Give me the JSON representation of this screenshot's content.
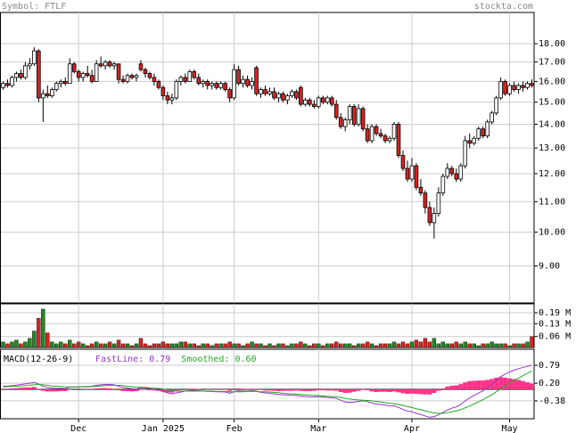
{
  "chart_data": [
    {
      "type": "candlestick",
      "symbol_label": "Symbol: FTLF",
      "source": "stockta.com",
      "categories": [
        null,
        null,
        null,
        null,
        null,
        null,
        null,
        null,
        null,
        null,
        null,
        null,
        null,
        null,
        null,
        null,
        null,
        "Dec",
        null,
        null,
        null,
        null,
        null,
        null,
        null,
        null,
        null,
        null,
        null,
        null,
        null,
        null,
        null,
        null,
        null,
        null,
        "Jan 2025",
        null,
        null,
        null,
        null,
        null,
        null,
        null,
        null,
        null,
        null,
        null,
        null,
        null,
        null,
        null,
        "Feb",
        null,
        null,
        null,
        null,
        null,
        null,
        null,
        null,
        null,
        null,
        null,
        null,
        null,
        null,
        null,
        null,
        null,
        null,
        "Mar",
        null,
        null,
        null,
        null,
        null,
        null,
        null,
        null,
        null,
        null,
        null,
        null,
        null,
        null,
        null,
        null,
        null,
        null,
        null,
        null,
        "Apr",
        null,
        null,
        null,
        null,
        null,
        null,
        null,
        null,
        null,
        null,
        null,
        null,
        null,
        null,
        null,
        null,
        null,
        null,
        null,
        null,
        null,
        "May",
        null,
        null,
        null,
        null,
        null
      ],
      "open": [
        15.7,
        15.9,
        15.8,
        16.2,
        16.4,
        16.2,
        16.8,
        16.9,
        17.6,
        15.2,
        15.4,
        15.3,
        15.6,
        15.9,
        16.0,
        15.9,
        16.9,
        16.5,
        16.2,
        16.4,
        16.3,
        16.0,
        16.9,
        16.8,
        17.0,
        16.8,
        16.9,
        16.1,
        16.0,
        16.3,
        16.2,
        16.9,
        16.6,
        16.4,
        16.2,
        16.0,
        15.7,
        15.3,
        15.1,
        15.2,
        16.0,
        16.2,
        16.0,
        16.5,
        16.2,
        15.9,
        16.0,
        15.8,
        15.9,
        15.7,
        15.9,
        15.6,
        15.2,
        16.6,
        15.9,
        16.1,
        15.8,
        16.7,
        15.4,
        15.6,
        15.4,
        15.5,
        15.2,
        15.4,
        15.1,
        15.3,
        15.5,
        15.7,
        14.9,
        15.1,
        14.9,
        14.8,
        15.2,
        15.0,
        15.2,
        14.9,
        14.3,
        13.9,
        14.2,
        14.8,
        14.0,
        14.7,
        13.8,
        13.3,
        13.9,
        13.6,
        13.5,
        13.3,
        13.4,
        14.0,
        12.7,
        12.2,
        11.8,
        12.3,
        11.5,
        11.3,
        10.8,
        10.3,
        10.6,
        11.3,
        11.9,
        12.2,
        12.0,
        11.8,
        12.3,
        13.3,
        13.2,
        13.4,
        13.8,
        13.5,
        14.1,
        14.5,
        15.2,
        16.0,
        15.4,
        15.8,
        15.6,
        15.8,
        15.7,
        15.9
      ],
      "high": [
        16.0,
        16.1,
        16.3,
        16.5,
        16.6,
        17.0,
        17.2,
        17.8,
        17.7,
        15.6,
        15.8,
        15.7,
        16.0,
        16.1,
        16.2,
        17.2,
        17.0,
        16.6,
        16.5,
        16.8,
        16.6,
        17.1,
        17.3,
        17.1,
        17.1,
        17.0,
        16.9,
        16.3,
        16.4,
        16.4,
        16.4,
        17.1,
        16.7,
        16.5,
        16.4,
        16.1,
        15.8,
        15.5,
        15.4,
        16.1,
        16.3,
        16.4,
        16.6,
        16.6,
        16.4,
        16.1,
        16.1,
        16.0,
        16.0,
        16.0,
        16.0,
        15.7,
        16.9,
        16.8,
        16.3,
        16.3,
        16.2,
        16.8,
        15.7,
        15.8,
        15.7,
        15.7,
        15.5,
        15.5,
        15.4,
        15.6,
        15.6,
        15.8,
        15.2,
        15.2,
        15.1,
        15.3,
        15.3,
        15.3,
        15.3,
        15.1,
        14.5,
        14.3,
        14.9,
        14.9,
        14.9,
        14.8,
        14.0,
        14.0,
        14.0,
        13.8,
        13.6,
        13.5,
        14.1,
        14.1,
        12.9,
        12.5,
        12.6,
        12.4,
        11.8,
        11.4,
        11.0,
        10.8,
        11.5,
        12.0,
        12.4,
        12.3,
        12.2,
        12.4,
        13.5,
        13.6,
        13.5,
        13.9,
        13.9,
        14.2,
        14.6,
        15.3,
        16.2,
        16.1,
        15.9,
        16.0,
        15.9,
        16.0,
        16.0,
        16.1
      ],
      "low": [
        15.6,
        15.7,
        15.7,
        16.0,
        16.1,
        16.1,
        16.6,
        16.8,
        15.0,
        14.1,
        15.2,
        15.2,
        15.5,
        15.7,
        15.8,
        15.9,
        16.4,
        16.0,
        16.0,
        16.2,
        15.9,
        16.0,
        16.7,
        16.6,
        16.7,
        16.6,
        15.9,
        15.9,
        15.9,
        16.1,
        16.0,
        16.5,
        16.2,
        16.1,
        15.8,
        15.6,
        15.1,
        14.9,
        14.9,
        15.1,
        15.8,
        15.9,
        16.0,
        16.1,
        15.8,
        15.7,
        15.6,
        15.6,
        15.6,
        15.6,
        15.5,
        15.0,
        15.1,
        15.8,
        15.7,
        15.7,
        15.6,
        15.3,
        15.2,
        15.3,
        15.3,
        15.1,
        15.0,
        15.0,
        14.9,
        15.2,
        15.1,
        14.8,
        14.8,
        14.8,
        14.7,
        14.7,
        14.9,
        14.9,
        14.8,
        14.2,
        13.8,
        13.7,
        14.0,
        13.9,
        13.9,
        13.7,
        13.2,
        13.2,
        13.5,
        13.4,
        13.2,
        13.2,
        13.3,
        12.6,
        12.1,
        11.7,
        11.7,
        11.4,
        11.2,
        10.6,
        10.2,
        9.8,
        10.5,
        11.2,
        11.8,
        11.9,
        11.7,
        11.7,
        12.2,
        13.0,
        13.1,
        13.3,
        13.4,
        13.4,
        14.0,
        14.4,
        15.1,
        15.3,
        15.3,
        15.5,
        15.4,
        15.5,
        15.6,
        15.7
      ],
      "close": [
        15.9,
        15.8,
        16.2,
        16.4,
        16.2,
        16.8,
        16.9,
        17.6,
        15.2,
        15.4,
        15.3,
        15.6,
        15.9,
        16.0,
        15.9,
        16.9,
        16.5,
        16.2,
        16.4,
        16.3,
        16.0,
        16.9,
        16.8,
        17.0,
        16.8,
        16.9,
        16.1,
        16.0,
        16.3,
        16.2,
        16.3,
        16.6,
        16.4,
        16.2,
        16.0,
        15.7,
        15.3,
        15.1,
        15.2,
        16.0,
        16.2,
        16.0,
        16.5,
        16.2,
        15.9,
        16.0,
        15.8,
        15.9,
        15.7,
        15.9,
        15.6,
        15.2,
        16.6,
        15.9,
        16.1,
        15.8,
        16.0,
        15.4,
        15.6,
        15.4,
        15.5,
        15.2,
        15.4,
        15.1,
        15.3,
        15.5,
        15.2,
        14.9,
        15.1,
        14.9,
        14.8,
        15.2,
        15.0,
        15.2,
        14.9,
        14.3,
        13.9,
        14.2,
        14.8,
        14.0,
        14.7,
        13.8,
        13.3,
        13.9,
        13.6,
        13.5,
        13.3,
        13.4,
        14.0,
        12.7,
        12.2,
        11.8,
        12.3,
        11.5,
        11.3,
        10.8,
        10.3,
        10.6,
        11.3,
        11.9,
        12.2,
        12.0,
        11.8,
        12.3,
        13.3,
        13.2,
        13.4,
        13.8,
        13.5,
        14.1,
        14.5,
        15.2,
        16.0,
        15.4,
        15.8,
        15.6,
        15.8,
        15.7,
        15.9,
        15.8
      ],
      "up_color": "#ffffff",
      "down_color": "#dd2222",
      "log_scale": true,
      "ylim": [
        8.02,
        19.84
      ],
      "grid": true,
      "yticks": [
        {
          "value": 9,
          "label": "9.00"
        },
        {
          "value": 10,
          "label": "10.00"
        },
        {
          "value": 11,
          "label": "11.00"
        },
        {
          "value": 12,
          "label": "12.00"
        },
        {
          "value": 13,
          "label": "13.00"
        },
        {
          "value": 14,
          "label": "14.00"
        },
        {
          "value": 15,
          "label": "15.00"
        },
        {
          "value": 16,
          "label": "16.00"
        },
        {
          "value": 17,
          "label": "17.00"
        },
        {
          "value": 18,
          "label": "18.00"
        }
      ]
    },
    {
      "type": "bar",
      "up_color": "#228822",
      "down_color": "#dd2222",
      "values": [
        0.03,
        0.02,
        0.03,
        0.04,
        0.02,
        0.03,
        0.05,
        0.09,
        0.16,
        0.21,
        0.08,
        0.03,
        0.02,
        0.03,
        0.02,
        0.04,
        0.02,
        0.03,
        0.02,
        0.01,
        0.02,
        0.03,
        0.02,
        0.02,
        0.03,
        0.02,
        0.04,
        0.02,
        0.02,
        0.01,
        0.02,
        0.05,
        0.02,
        0.01,
        0.02,
        0.02,
        0.03,
        0.02,
        0.02,
        0.02,
        0.03,
        0.03,
        0.02,
        0.02,
        0.01,
        0.02,
        0.02,
        0.01,
        0.02,
        0.02,
        0.02,
        0.03,
        0.02,
        0.02,
        0.01,
        0.02,
        0.03,
        0.02,
        0.02,
        0.01,
        0.02,
        0.01,
        0.02,
        0.02,
        0.01,
        0.02,
        0.02,
        0.03,
        0.02,
        0.01,
        0.02,
        0.02,
        0.01,
        0.02,
        0.02,
        0.03,
        0.02,
        0.02,
        0.02,
        0.01,
        0.02,
        0.02,
        0.03,
        0.02,
        0.01,
        0.02,
        0.02,
        0.02,
        0.03,
        0.02,
        0.03,
        0.02,
        0.03,
        0.04,
        0.03,
        0.05,
        0.03,
        0.05,
        0.02,
        0.03,
        0.02,
        0.02,
        0.03,
        0.02,
        0.03,
        0.02,
        0.02,
        0.01,
        0.02,
        0.02,
        0.03,
        0.02,
        0.02,
        0.02,
        0.01,
        0.02,
        0.02,
        0.02,
        0.03,
        0.06
      ],
      "ylim": [
        0,
        0.239
      ],
      "grid": true,
      "yticks": [
        {
          "value": 0.06,
          "label": "0.06 M"
        },
        {
          "value": 0.13,
          "label": "0.13 M"
        },
        {
          "value": 0.19,
          "label": "0.19 M"
        }
      ]
    },
    {
      "type": "macd",
      "title": "MACD(12-26-9)",
      "series": [
        {
          "name": "FastLine:",
          "value_label": "0.79",
          "color": "#9933cc",
          "kind": "line",
          "values": [
            0.1,
            0.11,
            0.12,
            0.14,
            0.16,
            0.18,
            0.2,
            0.23,
            0.17,
            0.1,
            0.06,
            0.04,
            0.03,
            0.03,
            0.02,
            0.07,
            0.08,
            0.08,
            0.09,
            0.09,
            0.1,
            0.13,
            0.15,
            0.16,
            0.16,
            0.15,
            0.1,
            0.06,
            0.04,
            0.02,
            0.01,
            0.05,
            0.04,
            0.02,
            0.0,
            -0.02,
            -0.07,
            -0.12,
            -0.15,
            -0.12,
            -0.09,
            -0.06,
            -0.04,
            -0.04,
            -0.05,
            -0.06,
            -0.07,
            -0.07,
            -0.08,
            -0.08,
            -0.09,
            -0.13,
            -0.08,
            -0.05,
            -0.06,
            -0.06,
            -0.05,
            -0.06,
            -0.1,
            -0.12,
            -0.13,
            -0.15,
            -0.17,
            -0.18,
            -0.19,
            -0.2,
            -0.2,
            -0.22,
            -0.24,
            -0.25,
            -0.25,
            -0.24,
            -0.25,
            -0.27,
            -0.28,
            -0.3,
            -0.36,
            -0.42,
            -0.43,
            -0.42,
            -0.4,
            -0.38,
            -0.4,
            -0.45,
            -0.49,
            -0.5,
            -0.52,
            -0.55,
            -0.54,
            -0.6,
            -0.66,
            -0.72,
            -0.74,
            -0.79,
            -0.83,
            -0.88,
            -0.92,
            -0.9,
            -0.84,
            -0.76,
            -0.68,
            -0.62,
            -0.58,
            -0.5,
            -0.38,
            -0.28,
            -0.2,
            -0.12,
            -0.05,
            0.05,
            0.16,
            0.3,
            0.42,
            0.5,
            0.57,
            0.63,
            0.68,
            0.72,
            0.76,
            0.79
          ]
        },
        {
          "name": "Smoothed:",
          "value_label": "0.60",
          "color": "#22aa22",
          "kind": "line",
          "values": [
            0.08,
            0.09,
            0.09,
            0.1,
            0.11,
            0.12,
            0.14,
            0.15,
            0.16,
            0.15,
            0.13,
            0.11,
            0.1,
            0.09,
            0.08,
            0.08,
            0.08,
            0.08,
            0.08,
            0.08,
            0.09,
            0.1,
            0.11,
            0.12,
            0.13,
            0.13,
            0.13,
            0.12,
            0.1,
            0.09,
            0.07,
            0.07,
            0.06,
            0.05,
            0.04,
            0.03,
            0.01,
            -0.02,
            -0.04,
            -0.06,
            -0.06,
            -0.06,
            -0.06,
            -0.06,
            -0.06,
            -0.06,
            -0.06,
            -0.06,
            -0.07,
            -0.07,
            -0.07,
            -0.08,
            -0.08,
            -0.08,
            -0.08,
            -0.07,
            -0.07,
            -0.07,
            -0.08,
            -0.08,
            -0.09,
            -0.1,
            -0.11,
            -0.13,
            -0.14,
            -0.15,
            -0.16,
            -0.17,
            -0.18,
            -0.19,
            -0.2,
            -0.21,
            -0.22,
            -0.23,
            -0.24,
            -0.25,
            -0.27,
            -0.3,
            -0.32,
            -0.34,
            -0.35,
            -0.36,
            -0.37,
            -0.38,
            -0.4,
            -0.42,
            -0.44,
            -0.46,
            -0.47,
            -0.5,
            -0.53,
            -0.57,
            -0.6,
            -0.64,
            -0.67,
            -0.71,
            -0.75,
            -0.78,
            -0.79,
            -0.79,
            -0.77,
            -0.74,
            -0.71,
            -0.67,
            -0.61,
            -0.55,
            -0.48,
            -0.41,
            -0.34,
            -0.26,
            -0.18,
            -0.08,
            0.02,
            0.12,
            0.21,
            0.29,
            0.37,
            0.45,
            0.53,
            0.6
          ]
        },
        {
          "color": "#ff3388",
          "kind": "bar",
          "values": [
            0.02,
            0.02,
            0.03,
            0.04,
            0.05,
            0.06,
            0.06,
            0.08,
            0.01,
            -0.05,
            -0.07,
            -0.07,
            -0.07,
            -0.06,
            -0.06,
            -0.01,
            0.0,
            0.0,
            0.01,
            0.01,
            0.01,
            0.03,
            0.04,
            0.04,
            0.03,
            0.02,
            -0.03,
            -0.06,
            -0.06,
            -0.07,
            -0.06,
            -0.02,
            -0.02,
            -0.03,
            -0.04,
            -0.05,
            -0.08,
            -0.1,
            -0.11,
            -0.06,
            -0.03,
            0.0,
            0.02,
            0.02,
            0.01,
            0.0,
            -0.01,
            -0.01,
            -0.01,
            -0.01,
            -0.02,
            -0.05,
            0.0,
            0.03,
            0.02,
            0.01,
            0.02,
            0.01,
            -0.02,
            -0.04,
            -0.04,
            -0.05,
            -0.06,
            -0.05,
            -0.05,
            -0.05,
            -0.04,
            -0.05,
            -0.06,
            -0.06,
            -0.05,
            -0.03,
            -0.03,
            -0.04,
            -0.04,
            -0.05,
            -0.09,
            -0.12,
            -0.11,
            -0.08,
            -0.05,
            -0.02,
            -0.03,
            -0.07,
            -0.09,
            -0.08,
            -0.08,
            -0.09,
            -0.07,
            -0.1,
            -0.13,
            -0.15,
            -0.14,
            -0.15,
            -0.16,
            -0.17,
            -0.17,
            -0.12,
            -0.05,
            0.03,
            0.09,
            0.12,
            0.13,
            0.17,
            0.23,
            0.27,
            0.28,
            0.29,
            0.29,
            0.31,
            0.34,
            0.38,
            0.4,
            0.38,
            0.36,
            0.34,
            0.31,
            0.27,
            0.23,
            0.19
          ]
        }
      ],
      "ylim": [
        -0.97,
        1.32
      ],
      "grid": true,
      "yticks": [
        -0.38,
        {
          "value": 0.2,
          "label": "0.20"
        },
        0.79
      ]
    }
  ]
}
